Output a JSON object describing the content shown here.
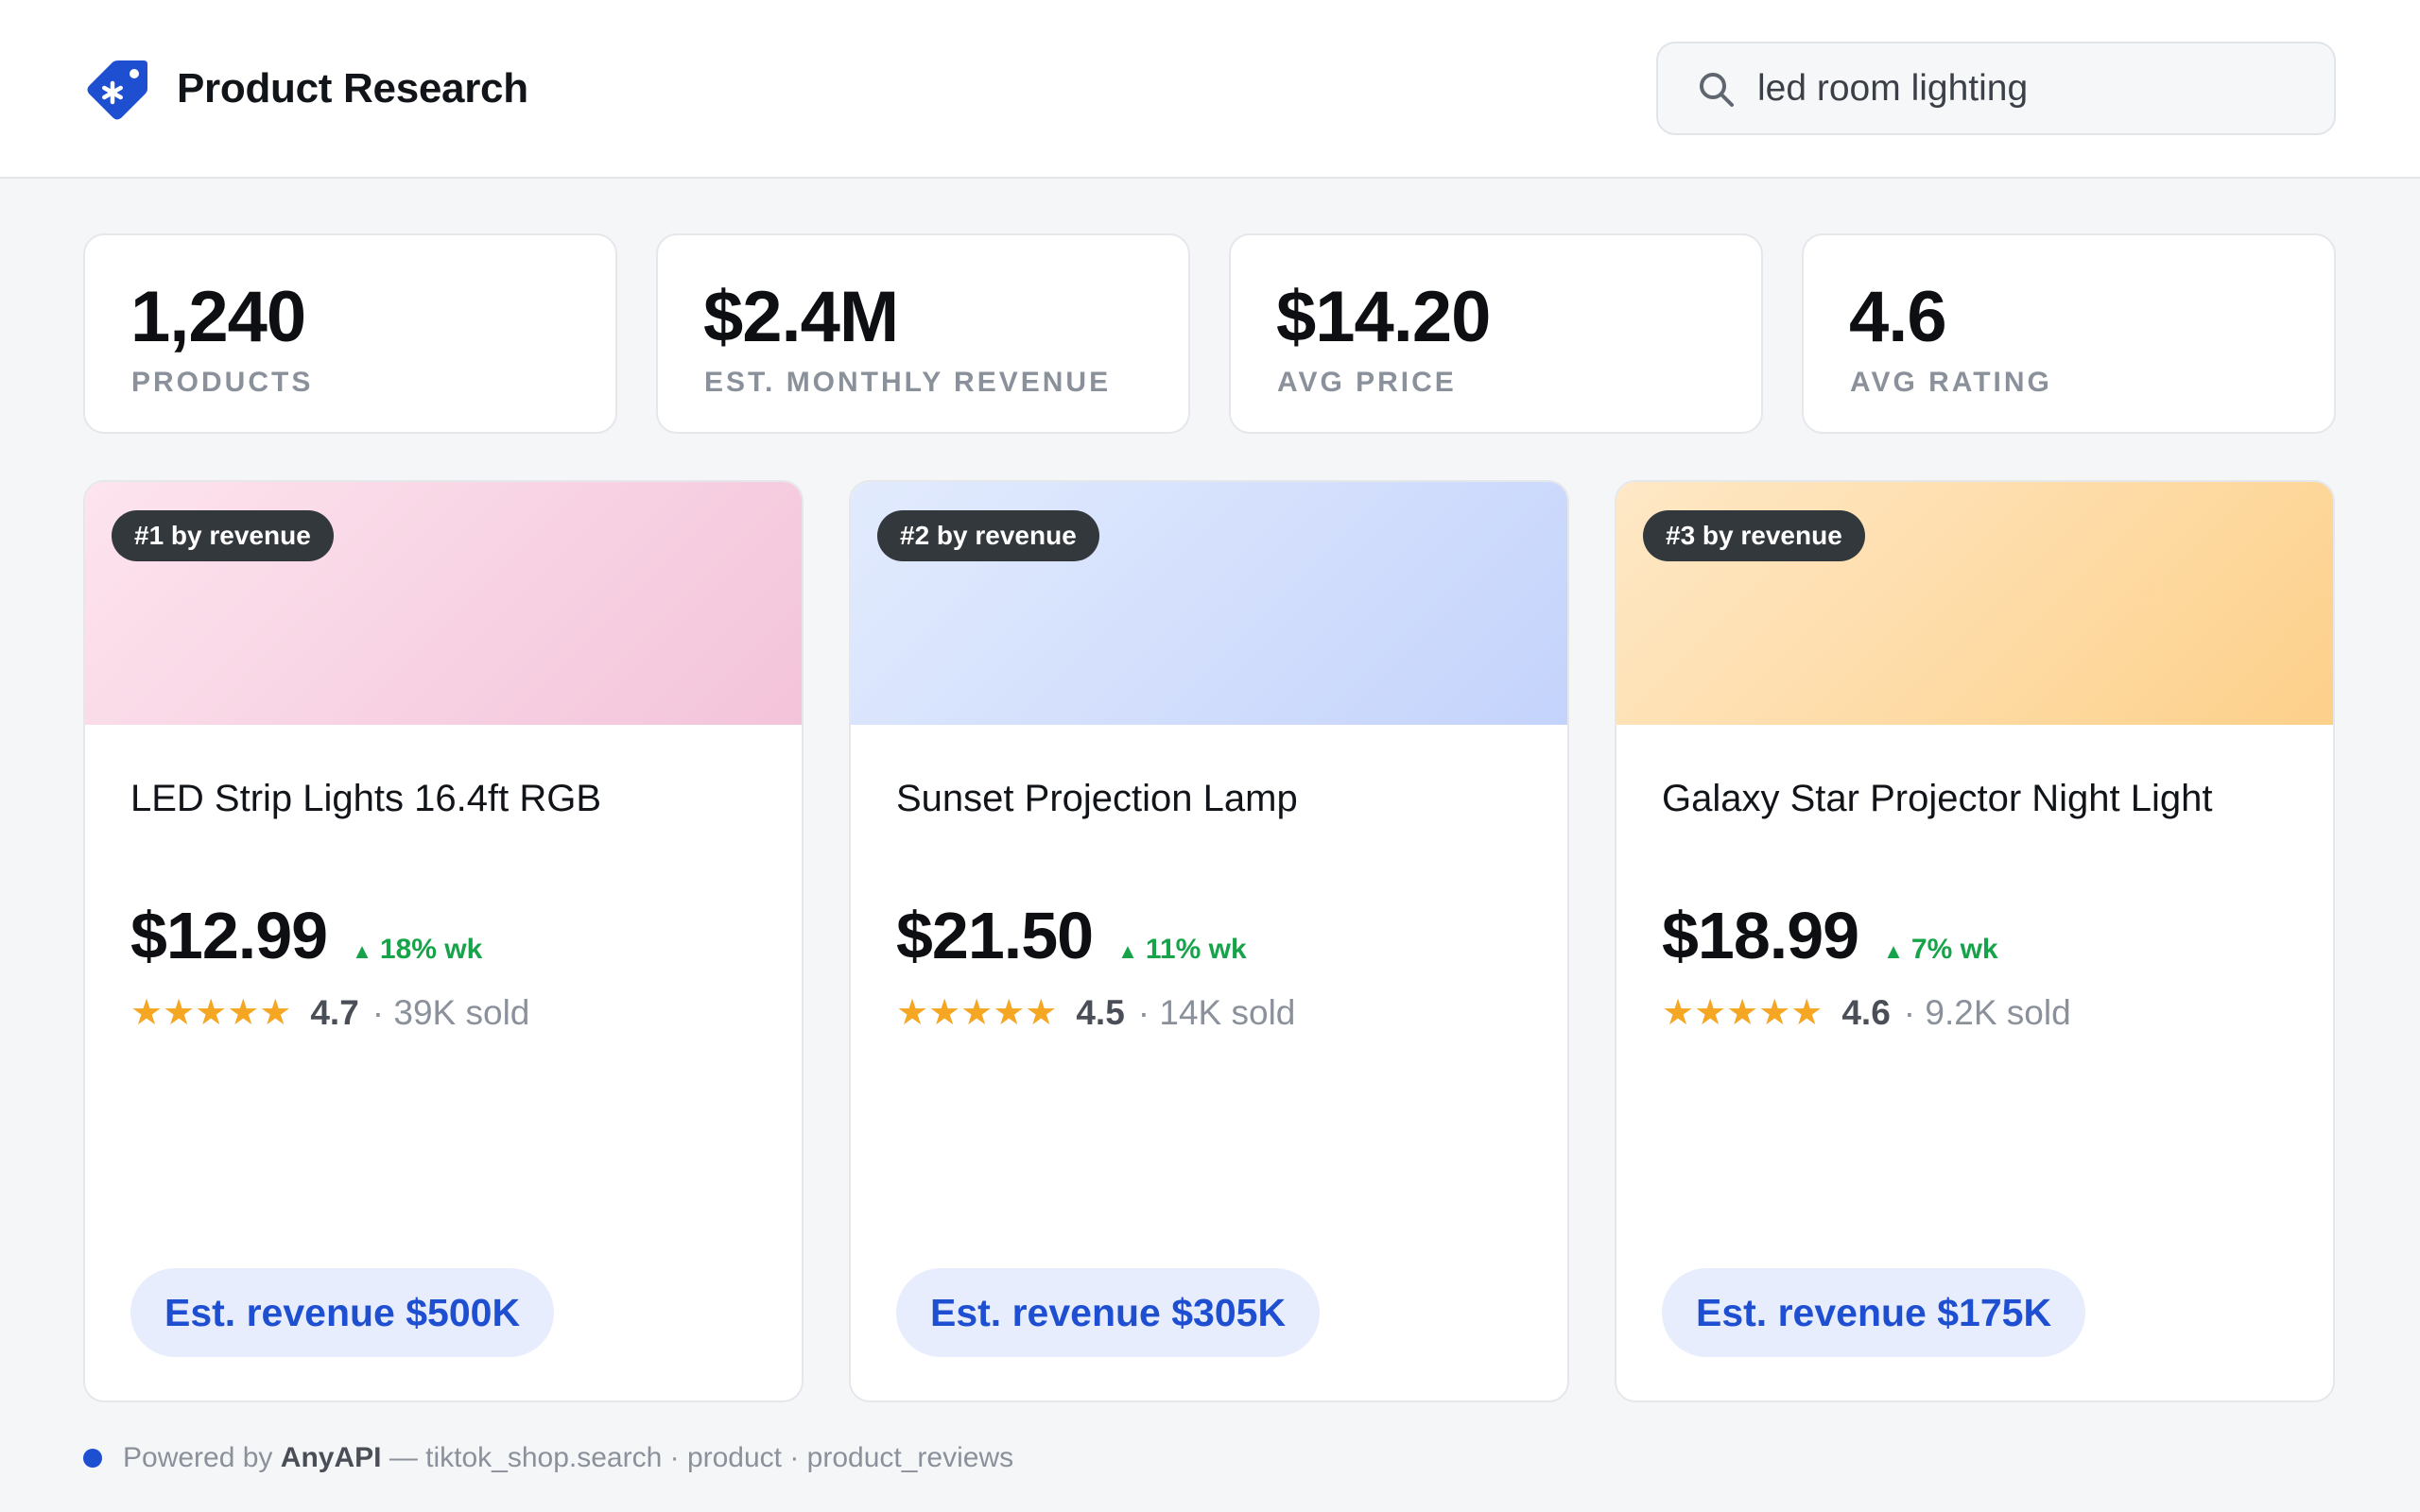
{
  "header": {
    "app_title": "Product Research",
    "logo_icon": "tag-icon",
    "brand_color": "#1f4fd1",
    "search": {
      "icon": "search-icon",
      "value": "led room lighting"
    }
  },
  "stats": [
    {
      "value": "1,240",
      "label": "PRODUCTS"
    },
    {
      "value": "$2.4M",
      "label": "EST. MONTHLY REVENUE"
    },
    {
      "value": "$14.20",
      "label": "AVG PRICE"
    },
    {
      "value": "4.6",
      "label": "AVG RATING"
    }
  ],
  "products": [
    {
      "rank": "#1 by revenue",
      "name": "LED Strip Lights 16.4ft RGB",
      "price": "$12.99",
      "trend": "18% wk",
      "stars": "★★★★★",
      "rating": "4.7",
      "sold": "· 39K sold",
      "revenue": "Est. revenue $500K",
      "image_color": "#f3c3da"
    },
    {
      "rank": "#2 by revenue",
      "name": "Sunset Projection Lamp",
      "price": "$21.50",
      "trend": "11% wk",
      "stars": "★★★★★",
      "rating": "4.5",
      "sold": "· 14K sold",
      "revenue": "Est. revenue $305K",
      "image_color": "#c4d3fc"
    },
    {
      "rank": "#3 by revenue",
      "name": "Galaxy Star Projector Night Light",
      "price": "$18.99",
      "trend": "7% wk",
      "stars": "★★★★★",
      "rating": "4.6",
      "sold": "· 9.2K sold",
      "revenue": "Est. revenue $175K",
      "image_color": "#fdd08a"
    }
  ],
  "footer": {
    "prefix": "Powered by",
    "brand": "AnyAPI",
    "suffix": "— tiktok_shop.search · product · product_reviews"
  }
}
